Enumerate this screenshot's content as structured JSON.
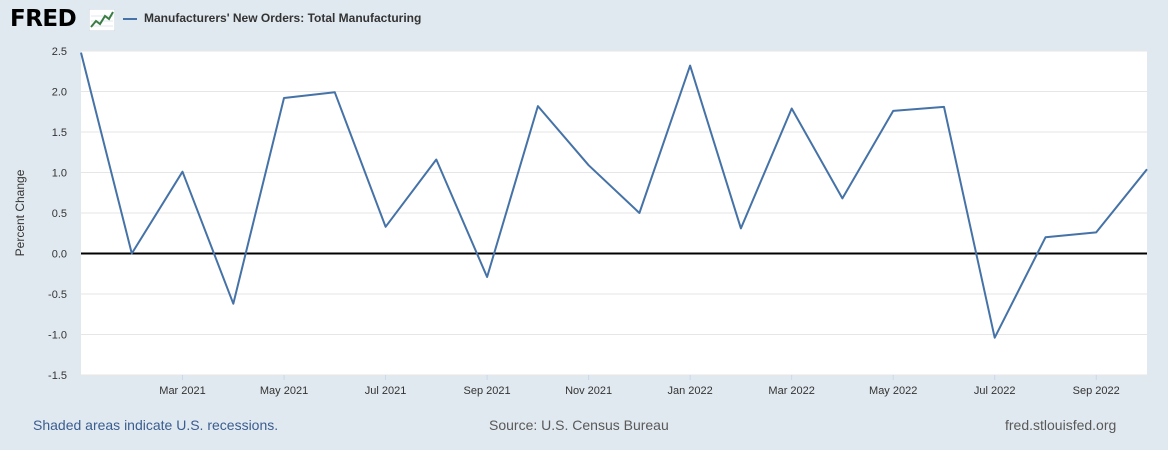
{
  "header": {
    "logo_text": "FRED",
    "series_label": "Manufacturers' New Orders: Total Manufacturing"
  },
  "footer": {
    "recession_note": "Shaded areas indicate U.S. recessions.",
    "source": "Source: U.S. Census Bureau",
    "site": "fred.stlouisfed.org"
  },
  "colors": {
    "line": "#4572a7",
    "background": "#e1e9f0",
    "plot_background": "#ffffff",
    "grid": "#e6e6e6",
    "zero_line": "#000000"
  },
  "chart_data": {
    "type": "line",
    "title": "",
    "xlabel": "",
    "ylabel": "Percent Change",
    "ylim": [
      -1.5,
      2.5
    ],
    "yticks": [
      "2.5",
      "2.0",
      "1.5",
      "1.0",
      "0.5",
      "0.0",
      "-0.5",
      "-1.0",
      "-1.5"
    ],
    "grid": true,
    "x": [
      "2021-01",
      "2021-02",
      "2021-03",
      "2021-04",
      "2021-05",
      "2021-06",
      "2021-07",
      "2021-08",
      "2021-09",
      "2021-10",
      "2021-11",
      "2021-12",
      "2022-01",
      "2022-02",
      "2022-03",
      "2022-04",
      "2022-05",
      "2022-06",
      "2022-07",
      "2022-08",
      "2022-09",
      "2022-10"
    ],
    "x_tick_labels": [
      "Mar 2021",
      "May 2021",
      "Jul 2021",
      "Sep 2021",
      "Nov 2021",
      "Jan 2022",
      "Mar 2022",
      "May 2022",
      "Jul 2022",
      "Sep 2022"
    ],
    "series": [
      {
        "name": "Manufacturers' New Orders: Total Manufacturing",
        "values": [
          2.48,
          0.0,
          1.01,
          -0.62,
          1.92,
          1.99,
          0.33,
          1.16,
          -0.29,
          1.82,
          1.09,
          0.5,
          2.32,
          0.31,
          1.79,
          0.68,
          1.76,
          1.81,
          -1.04,
          0.2,
          0.26,
          1.04
        ]
      }
    ]
  }
}
